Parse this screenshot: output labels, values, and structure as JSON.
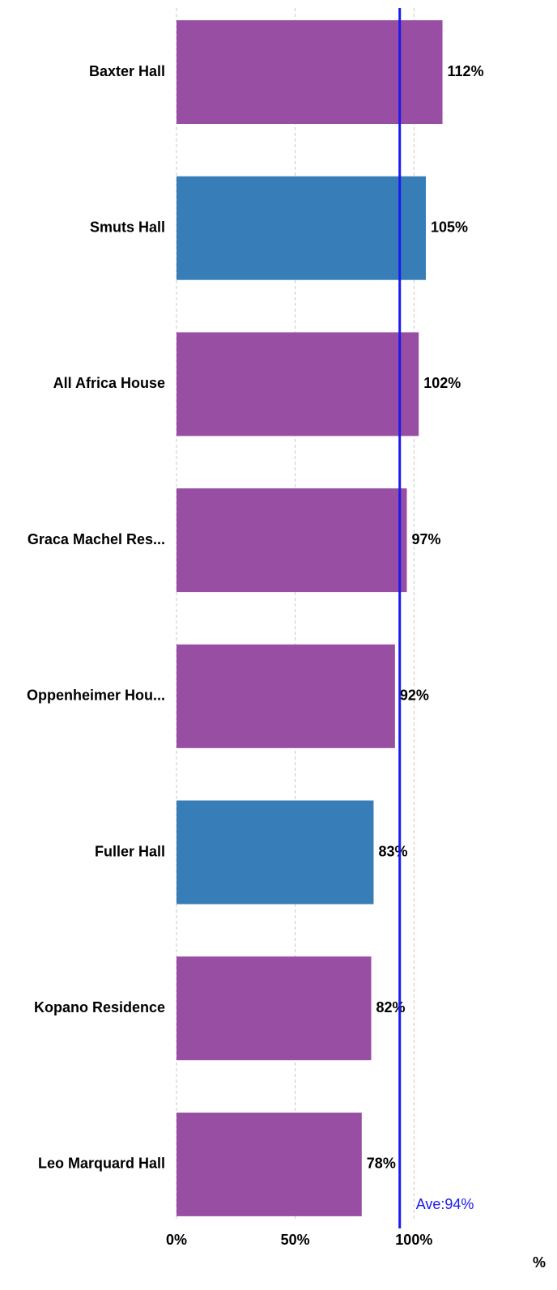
{
  "chart_data": {
    "type": "bar",
    "orientation": "horizontal",
    "categories": [
      "Baxter Hall",
      "Smuts Hall",
      "All Africa House",
      "Graca Machel Res...",
      "Oppenheimer Hou...",
      "Fuller Hall",
      "Kopano Residence",
      "Leo Marquard Hall"
    ],
    "values": [
      112,
      105,
      102,
      97,
      92,
      83,
      82,
      78
    ],
    "value_labels": [
      "112%",
      "105%",
      "102%",
      "97%",
      "92%",
      "83%",
      "82%",
      "78%"
    ],
    "colors": [
      "#984ea3",
      "#377eb8",
      "#984ea3",
      "#984ea3",
      "#984ea3",
      "#377eb8",
      "#984ea3",
      "#984ea3"
    ],
    "xlim": [
      0,
      150
    ],
    "xticks": [
      {
        "value": 0,
        "label": "0%"
      },
      {
        "value": 50,
        "label": "50%"
      },
      {
        "value": 100,
        "label": "100%"
      }
    ],
    "xlabel": "%",
    "grid": true,
    "average": {
      "value": 94,
      "label": "Ave:94%",
      "color": "#1a1aee"
    }
  }
}
